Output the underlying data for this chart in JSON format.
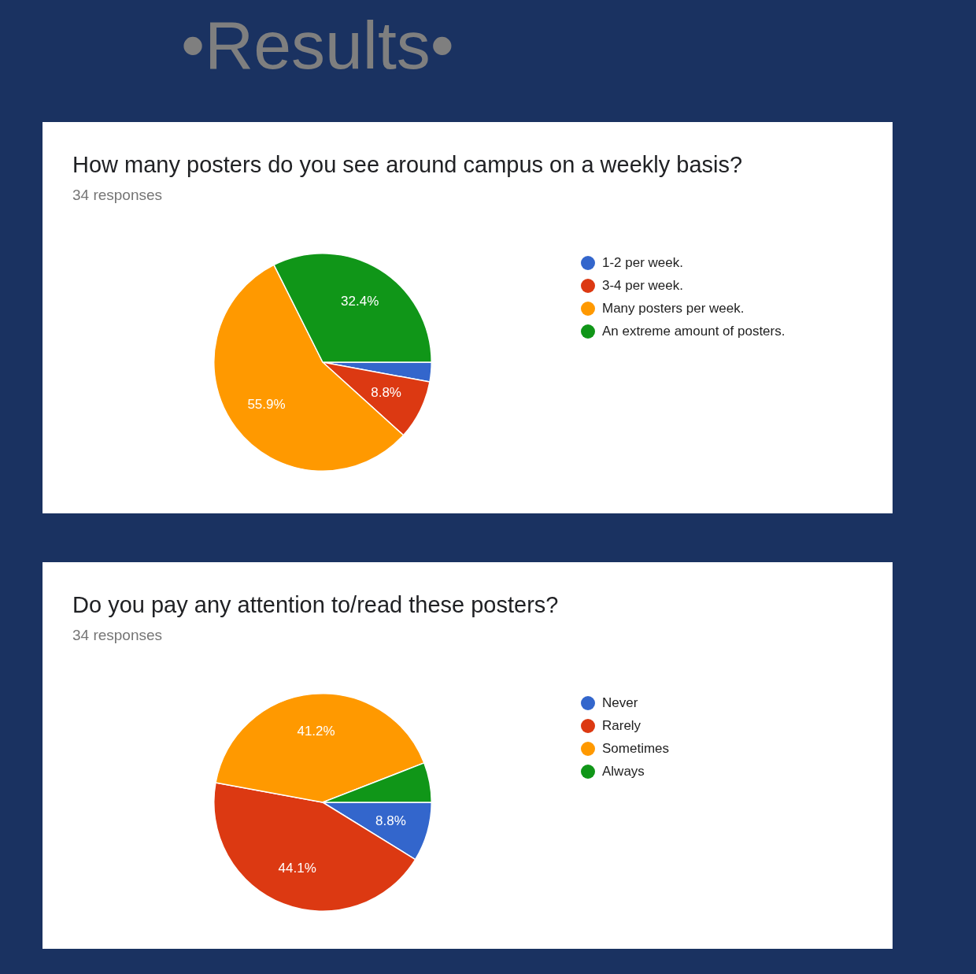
{
  "chart_data": [
    {
      "type": "other",
      "title": "•Results•"
    },
    {
      "type": "pie",
      "title": "How many posters do you see around campus on a weekly basis?",
      "subtitle": "34 responses",
      "categories": [
        "1-2 per week.",
        "3-4 per week.",
        "Many posters per week.",
        "An extreme amount of posters."
      ],
      "values": [
        2.9,
        8.8,
        55.9,
        32.4
      ],
      "colors": [
        "#3366cc",
        "#dc3912",
        "#ff9900",
        "#109618"
      ],
      "value_labels": [
        null,
        "8.8%",
        "55.9%",
        "32.4%"
      ],
      "legend": "right"
    },
    {
      "type": "pie",
      "title": "Do you pay any attention to/read these posters?",
      "subtitle": "34 responses",
      "categories": [
        "Never",
        "Rarely",
        "Sometimes",
        "Always"
      ],
      "values": [
        8.8,
        44.1,
        41.2,
        5.9
      ],
      "colors": [
        "#3366cc",
        "#dc3912",
        "#ff9900",
        "#109618"
      ],
      "value_labels": [
        "8.8%",
        "44.1%",
        "41.2%",
        null
      ],
      "legend": "right"
    }
  ]
}
